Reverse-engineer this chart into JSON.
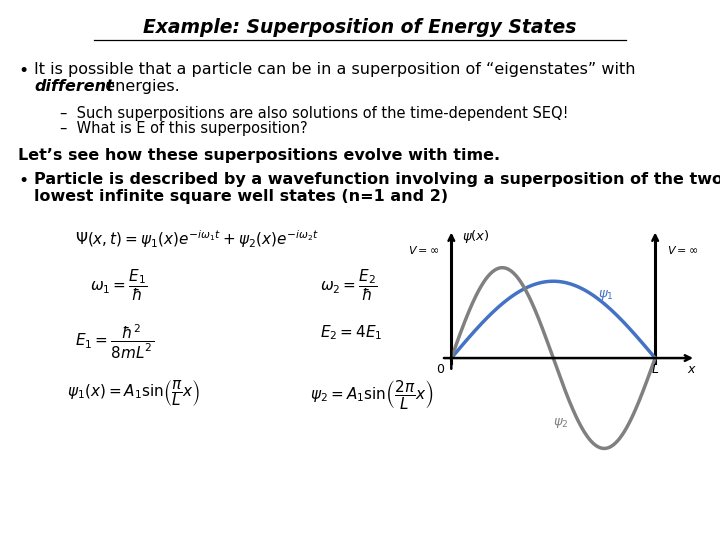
{
  "title": "Example: Superposition of Energy States",
  "background_color": "#ffffff",
  "text_color": "#000000",
  "bullet1_line1": "It is possible that a particle can be in a superposition of “eigenstates” with",
  "bullet1_line2_italic": "different",
  "bullet1_line2_rest": "  energies.",
  "sub1": "–  Such superpositions are also solutions of the time-dependent SEQ!",
  "sub2": "–  What is E of this superposition?",
  "lets": "Let’s see how these superpositions evolve with time.",
  "bullet2_line1": "Particle is described by a wavefunction involving a superposition of the two",
  "bullet2_line2": "lowest infinite square well states (n=1 and 2)",
  "eq1": "$\\Psi(x,t) = \\psi_1(x)e^{-i\\omega_1 t} + \\psi_2(x)e^{-i\\omega_2 t}$",
  "eq2a": "$\\omega_1 = \\dfrac{E_1}{\\hbar}$",
  "eq2b": "$\\omega_2 = \\dfrac{E_2}{\\hbar}$",
  "eq3a": "$E_1 = \\dfrac{\\hbar^2}{8mL^2}$",
  "eq3b": "$E_2 = 4E_1$",
  "eq4a": "$\\psi_1(x) = A_1\\sin\\!\\left(\\dfrac{\\pi}{L}x\\right)$",
  "eq4b": "$\\psi_2 = A_1\\sin\\!\\left(\\dfrac{2\\pi}{L}x\\right)$",
  "psi1_color": "#4472c4",
  "psi2_color": "#808080",
  "lm": 18,
  "fs_main": 11.5,
  "fs_small": 10.5,
  "fs_title": 13.5,
  "fs_eq": 11
}
